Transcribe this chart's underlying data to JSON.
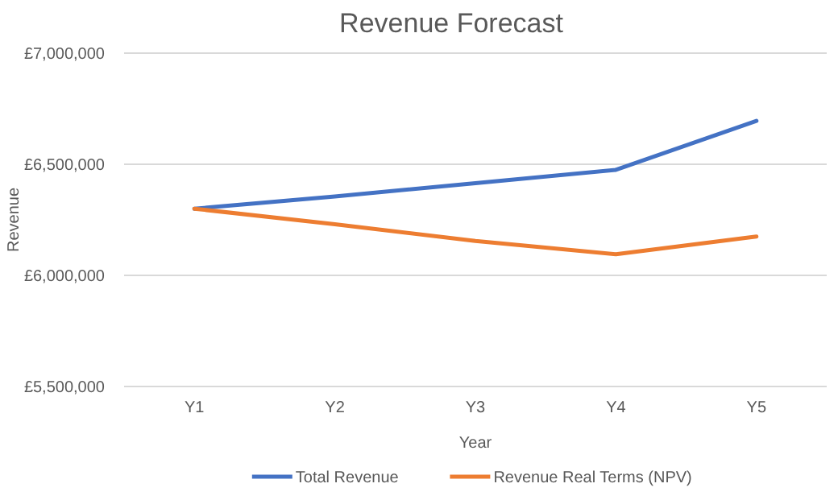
{
  "chart_data": {
    "type": "line",
    "title": "Revenue Forecast",
    "xlabel": "Year",
    "ylabel": "Revenue",
    "categories": [
      "Y1",
      "Y2",
      "Y3",
      "Y4",
      "Y5"
    ],
    "series": [
      {
        "name": "Total Revenue",
        "color": "#4472c4",
        "values": [
          6300000,
          6355000,
          6415000,
          6475000,
          6695000
        ]
      },
      {
        "name": "Revenue Real Terms (NPV)",
        "color": "#ed7d31",
        "values": [
          6300000,
          6230000,
          6155000,
          6095000,
          6175000
        ]
      }
    ],
    "ylim": [
      5500000,
      7000000
    ],
    "yticks": [
      {
        "value": 5500000,
        "label": "£5,500,000"
      },
      {
        "value": 6000000,
        "label": "£6,000,000"
      },
      {
        "value": 6500000,
        "label": "£6,500,000"
      },
      {
        "value": 7000000,
        "label": "£7,000,000"
      }
    ],
    "grid": "y",
    "legend": "bottom",
    "marker": "none",
    "line_style": "solid"
  }
}
